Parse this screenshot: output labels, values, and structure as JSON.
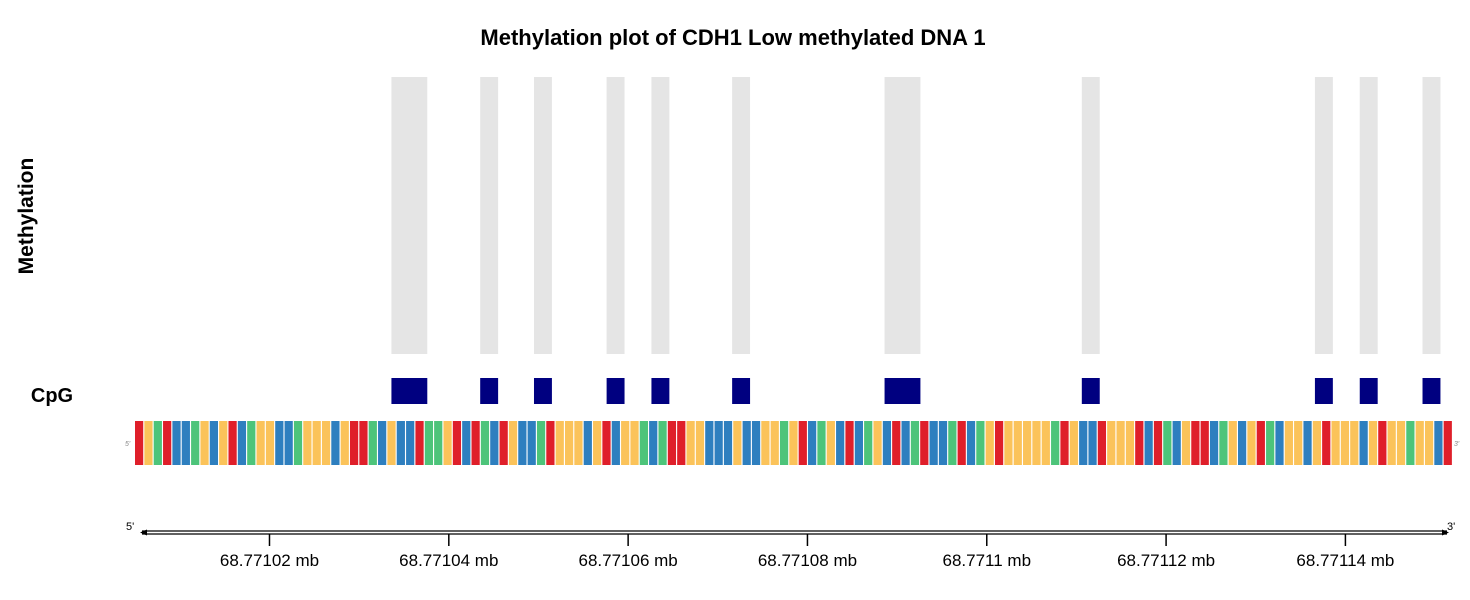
{
  "chart_data": {
    "type": "bar",
    "title": "Methylation plot of CDH1 Low methylated DNA 1",
    "ylabel": "Methylation",
    "track_label": "CpG",
    "axis_unit": "mb",
    "xlim": [
      68.771005,
      68.771152
    ],
    "x_ticks": [
      {
        "value": 68.77102,
        "label": "68.77102 mb"
      },
      {
        "value": 68.77104,
        "label": "68.77104 mb"
      },
      {
        "value": 68.77106,
        "label": "68.77106 mb"
      },
      {
        "value": 68.77108,
        "label": "68.77108 mb"
      },
      {
        "value": 68.7711,
        "label": "68.7711 mb"
      },
      {
        "value": 68.77112,
        "label": "68.77112 mb"
      },
      {
        "value": 68.77114,
        "label": "68.77114 mb"
      }
    ],
    "cpg_sites": [
      {
        "start": 68.7710336,
        "end": 68.7710376
      },
      {
        "start": 68.7710435,
        "end": 68.7710455
      },
      {
        "start": 68.7710495,
        "end": 68.7710515
      },
      {
        "start": 68.7710576,
        "end": 68.7710596
      },
      {
        "start": 68.7710626,
        "end": 68.7710646
      },
      {
        "start": 68.7710716,
        "end": 68.7710736
      },
      {
        "start": 68.7710886,
        "end": 68.7710926
      },
      {
        "start": 68.7711106,
        "end": 68.7711126
      },
      {
        "start": 68.7711366,
        "end": 68.7711386
      },
      {
        "start": 68.7711416,
        "end": 68.7711436
      },
      {
        "start": 68.7711486,
        "end": 68.7711506
      }
    ],
    "sequence": "TGATCCAGCGTCAGGCCAGGGCGTTACGCCTAAGTCTACTGCCATGGGCGTCGGACATTGGCCCGCCGGAGTCAGCTCAGCTCATCCATCAGTGGGGGATGCCTGGGTCTACGTTCAGCGTACGGCGTGGGCGTGGAGGCT",
    "strand_labels": {
      "left": "5'",
      "right": "3'"
    },
    "colors": {
      "A": "#4dc47a",
      "C": "#2e7fbf",
      "G": "#fbc35a",
      "T": "#df1f2a",
      "cpg": "#000080",
      "shade": "#e5e5e5"
    }
  }
}
